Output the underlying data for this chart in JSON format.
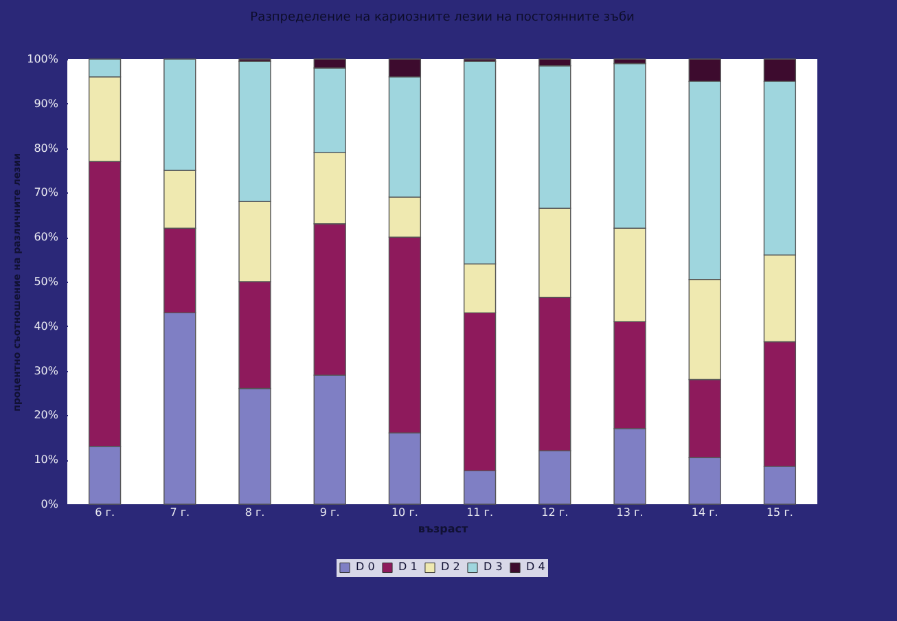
{
  "chart_data": {
    "type": "bar",
    "stacked": true,
    "title": "Разпределение на кариозните лезии на постоянните зъби",
    "xlabel": "възраст",
    "ylabel": "процентно съотношение на различните лезии",
    "categories": [
      "6 г.",
      "7 г.",
      "8 г.",
      "9 г.",
      "10 г.",
      "11 г.",
      "12 г.",
      "13 г.",
      "14 г.",
      "15 г."
    ],
    "series": [
      {
        "name": "D 0",
        "color": "#7f7fc4",
        "values": [
          13,
          43,
          26,
          29,
          16,
          7.5,
          12,
          17,
          10.5,
          8.5
        ]
      },
      {
        "name": "D 1",
        "color": "#8e1a5c",
        "values": [
          64,
          19,
          24,
          34,
          44,
          35.5,
          34.5,
          24,
          17.5,
          28
        ]
      },
      {
        "name": "D 2",
        "color": "#efe9b0",
        "values": [
          19,
          13,
          18,
          16,
          9,
          11,
          20,
          21,
          22.5,
          19.5
        ]
      },
      {
        "name": "D 3",
        "color": "#9fd6de",
        "values": [
          4,
          25,
          31.5,
          19,
          27,
          45.5,
          32,
          37,
          44.5,
          39
        ]
      },
      {
        "name": "D 4",
        "color": "#3d0b2e",
        "values": [
          0,
          0,
          0.5,
          2,
          4,
          0.5,
          1.5,
          1,
          5,
          5
        ]
      }
    ],
    "ylim": [
      0,
      100
    ],
    "yticks": [
      {
        "value": 0,
        "label": "0%"
      },
      {
        "value": 10,
        "label": "10%"
      },
      {
        "value": 20,
        "label": "20%"
      },
      {
        "value": 30,
        "label": "30%"
      },
      {
        "value": 40,
        "label": "40%"
      },
      {
        "value": 50,
        "label": "50%"
      },
      {
        "value": 60,
        "label": "60%"
      },
      {
        "value": 70,
        "label": "70%"
      },
      {
        "value": 80,
        "label": "80%"
      },
      {
        "value": 90,
        "label": "90%"
      },
      {
        "value": 100,
        "label": "100%"
      }
    ],
    "grid": false,
    "legend": "bottom"
  }
}
